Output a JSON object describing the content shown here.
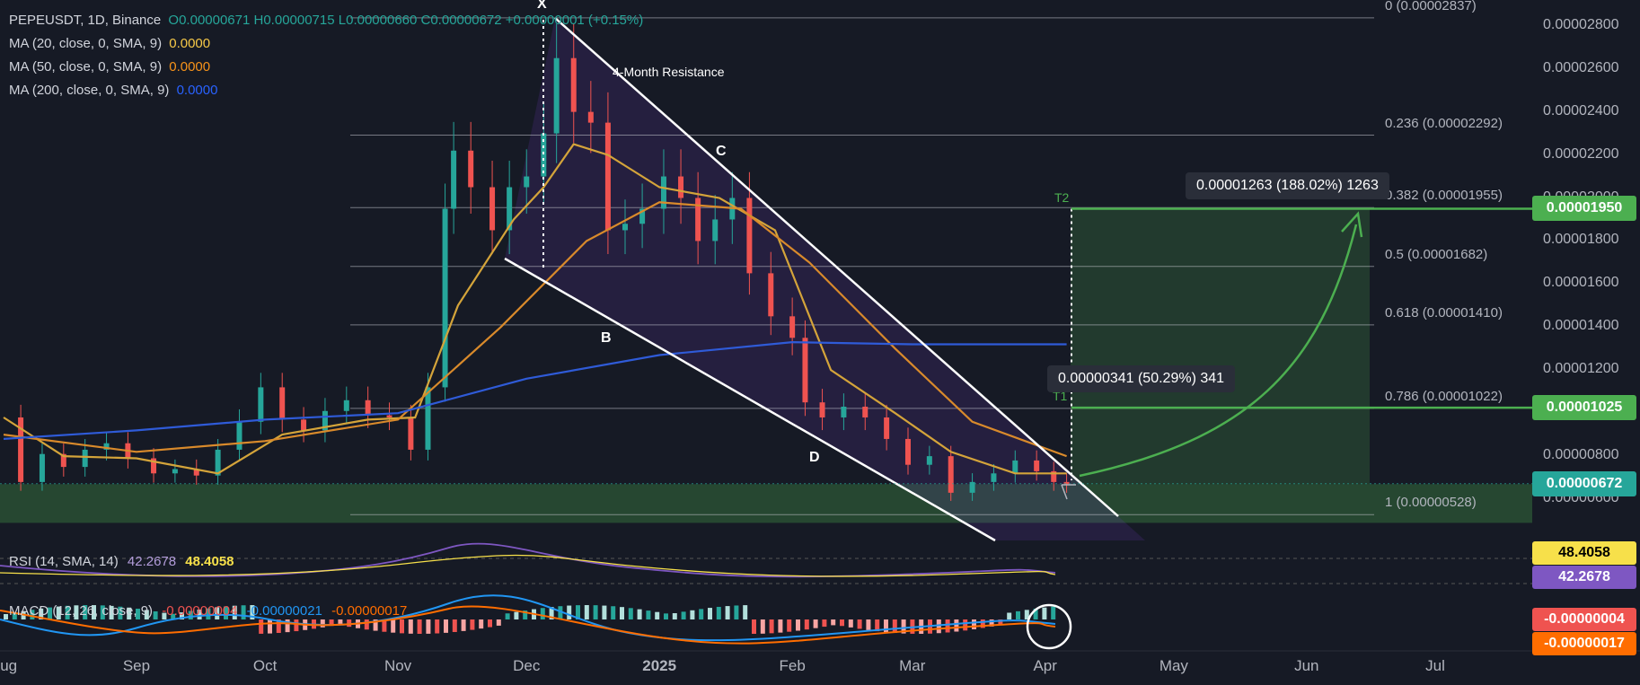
{
  "legend": {
    "symbol": "PEPEUSDT, 1D, Binance",
    "ohlc": "O0.00000671  H0.00000715  L0.00000660  C0.00000672  +0.00000001 (+0.15%)",
    "ma": [
      {
        "label": "MA (20, close, 0, SMA, 9)",
        "value": "0.0000",
        "color": "#f7c948"
      },
      {
        "label": "MA (50, close, 0, SMA, 9)",
        "value": "0.0000",
        "color": "#f7931a"
      },
      {
        "label": "MA (200, close, 0, SMA, 9)",
        "value": "0.0000",
        "color": "#2962ff"
      }
    ]
  },
  "annotations": {
    "resistance": "4-Month Resistance",
    "points": [
      "X",
      "B",
      "C",
      "D"
    ],
    "t1": "T1",
    "t2": "T2",
    "box_small": "0.00000341 (50.29%) 341",
    "box_large": "0.00001263 (188.02%) 1263"
  },
  "fib_levels": [
    {
      "label": "0 (0.00002837)",
      "value": 2.837e-05
    },
    {
      "label": "0.236 (0.00002292)",
      "value": 2.292e-05
    },
    {
      "label": "0.382 (0.00001955)",
      "value": 1.955e-05
    },
    {
      "label": "0.5 (0.00001682)",
      "value": 1.682e-05
    },
    {
      "label": "0.618 (0.00001410)",
      "value": 1.41e-05
    },
    {
      "label": "0.786 (0.00001022)",
      "value": 1.022e-05
    },
    {
      "label": "1 (0.00000528)",
      "value": 5.28e-06
    }
  ],
  "price_badges": [
    {
      "label": "0.00001950",
      "value": 1.95e-05,
      "color": "#4caf50"
    },
    {
      "label": "0.00001025",
      "value": 1.025e-05,
      "color": "#4caf50"
    },
    {
      "label": "0.00000672",
      "value": 6.72e-06,
      "color": "#26a69a"
    }
  ],
  "indicators": {
    "rsi_label": "RSI (14, SMA, 14)",
    "rsi_value": "42.2678",
    "rsi_ma_value": "48.4058",
    "macd_label": "MACD (12, 26, close, 9)",
    "macd_values": [
      "-0.00000004",
      "-0.00000021",
      "-0.00000017"
    ],
    "rsi_badges": [
      {
        "label": "48.4058",
        "color": "#f7e04a",
        "text": "#000000"
      },
      {
        "label": "42.2678",
        "color": "#7e57c2",
        "text": "#ffffff"
      }
    ],
    "macd_badges": [
      {
        "label": "-0.00000004",
        "color": "#ef5350",
        "text": "#ffffff"
      },
      {
        "label": "-0.00000017",
        "color": "#ff6d00",
        "text": "#ffffff"
      }
    ]
  },
  "chart_data": {
    "type": "candlestick",
    "title": "PEPEUSDT, 1D, Binance",
    "y_axis": {
      "ticks": [
        "0.00002800",
        "0.00002600",
        "0.00002400",
        "0.00002200",
        "0.00002000",
        "0.00001800",
        "0.00001600",
        "0.00001400",
        "0.00001200",
        "0.00001000",
        "0.00000800",
        "0.00000600"
      ],
      "values": [
        2.8e-05,
        2.6e-05,
        2.4e-05,
        2.2e-05,
        2e-05,
        1.8e-05,
        1.6e-05,
        1.4e-05,
        1.2e-05,
        1e-05,
        8e-06,
        6e-06
      ],
      "range": [
        4.5e-06,
        2.92e-05
      ]
    },
    "x_axis": {
      "ticks": [
        "Aug",
        "Sep",
        "Oct",
        "Nov",
        "Dec",
        "2025",
        "Feb",
        "Mar",
        "Apr",
        "May",
        "Jun",
        "Jul"
      ]
    },
    "series": [
      {
        "name": "price",
        "points": [
          [
            "2024-07-31",
            9.8e-06
          ],
          [
            "2024-08-05",
            6.8e-06
          ],
          [
            "2024-08-10",
            8.1e-06
          ],
          [
            "2024-08-15",
            7.5e-06
          ],
          [
            "2024-08-20",
            8.3e-06
          ],
          [
            "2024-08-25",
            8.6e-06
          ],
          [
            "2024-08-30",
            7.9e-06
          ],
          [
            "2024-09-05",
            7.2e-06
          ],
          [
            "2024-09-10",
            7.4e-06
          ],
          [
            "2024-09-15",
            7.1e-06
          ],
          [
            "2024-09-20",
            8.3e-06
          ],
          [
            "2024-09-25",
            9.6e-06
          ],
          [
            "2024-09-30",
            1.12e-05
          ],
          [
            "2024-10-05",
            9.7e-06
          ],
          [
            "2024-10-10",
            9.2e-06
          ],
          [
            "2024-10-15",
            1.01e-05
          ],
          [
            "2024-10-20",
            1.06e-05
          ],
          [
            "2024-10-25",
            9.9e-06
          ],
          [
            "2024-10-30",
            9.8e-06
          ],
          [
            "2024-11-04",
            8.3e-06
          ],
          [
            "2024-11-08",
            1.12e-05
          ],
          [
            "2024-11-12",
            1.95e-05
          ],
          [
            "2024-11-14",
            2.22e-05
          ],
          [
            "2024-11-18",
            2.05e-05
          ],
          [
            "2024-11-23",
            1.85e-05
          ],
          [
            "2024-11-27",
            2.05e-05
          ],
          [
            "2024-12-01",
            2.1e-05
          ],
          [
            "2024-12-05",
            2.3e-05
          ],
          [
            "2024-12-08",
            2.65e-05
          ],
          [
            "2024-12-12",
            2.4e-05
          ],
          [
            "2024-12-16",
            2.35e-05
          ],
          [
            "2024-12-20",
            1.85e-05
          ],
          [
            "2024-12-24",
            1.88e-05
          ],
          [
            "2024-12-28",
            1.95e-05
          ],
          [
            "2025-01-02",
            2.1e-05
          ],
          [
            "2025-01-06",
            2e-05
          ],
          [
            "2025-01-10",
            1.8e-05
          ],
          [
            "2025-01-14",
            1.9e-05
          ],
          [
            "2025-01-18",
            2e-05
          ],
          [
            "2025-01-22",
            1.65e-05
          ],
          [
            "2025-01-27",
            1.45e-05
          ],
          [
            "2025-02-01",
            1.35e-05
          ],
          [
            "2025-02-04",
            1.05e-05
          ],
          [
            "2025-02-08",
            9.8e-06
          ],
          [
            "2025-02-13",
            1.03e-05
          ],
          [
            "2025-02-18",
            9.8e-06
          ],
          [
            "2025-02-23",
            8.8e-06
          ],
          [
            "2025-02-28",
            7.6e-06
          ],
          [
            "2025-03-05",
            8e-06
          ],
          [
            "2025-03-10",
            6.3e-06
          ],
          [
            "2025-03-15",
            6.8e-06
          ],
          [
            "2025-03-20",
            7.2e-06
          ],
          [
            "2025-03-25",
            7.8e-06
          ],
          [
            "2025-03-30",
            7.3e-06
          ],
          [
            "2025-04-03",
            6.8e-06
          ],
          [
            "2025-04-06",
            6.7e-06
          ]
        ]
      },
      {
        "name": "MA (20, close, 0, SMA, 9)",
        "points": [
          [
            "2024-08-01",
            9.8e-06
          ],
          [
            "2024-08-15",
            8e-06
          ],
          [
            "2024-09-01",
            7.9e-06
          ],
          [
            "2024-09-20",
            7.2e-06
          ],
          [
            "2024-10-05",
            9e-06
          ],
          [
            "2024-10-25",
            9.7e-06
          ],
          [
            "2024-11-05",
            9.8e-06
          ],
          [
            "2024-11-15",
            1.5e-05
          ],
          [
            "2024-11-28",
            1.9e-05
          ],
          [
            "2024-12-05",
            2.05e-05
          ],
          [
            "2024-12-12",
            2.25e-05
          ],
          [
            "2024-12-20",
            2.2e-05
          ],
          [
            "2025-01-01",
            2.05e-05
          ],
          [
            "2025-01-15",
            2e-05
          ],
          [
            "2025-01-28",
            1.85e-05
          ],
          [
            "2025-02-10",
            1.2e-05
          ],
          [
            "2025-02-25",
            1e-05
          ],
          [
            "2025-03-10",
            8.2e-06
          ],
          [
            "2025-03-25",
            7.2e-06
          ],
          [
            "2025-04-06",
            7.2e-06
          ]
        ]
      },
      {
        "name": "MA (50, close, 0, SMA, 9)",
        "points": [
          [
            "2024-08-01",
            9e-06
          ],
          [
            "2024-09-01",
            8.2e-06
          ],
          [
            "2024-10-01",
            8.7e-06
          ],
          [
            "2024-11-01",
            9.7e-06
          ],
          [
            "2024-11-25",
            1.4e-05
          ],
          [
            "2024-12-15",
            1.8e-05
          ],
          [
            "2025-01-01",
            1.98e-05
          ],
          [
            "2025-01-20",
            1.95e-05
          ],
          [
            "2025-02-05",
            1.7e-05
          ],
          [
            "2025-02-25",
            1.3e-05
          ],
          [
            "2025-03-15",
            9.6e-06
          ],
          [
            "2025-04-06",
            8e-06
          ]
        ]
      },
      {
        "name": "MA (200, close, 0, SMA, 9)",
        "points": [
          [
            "2024-08-01",
            8.8e-06
          ],
          [
            "2024-09-01",
            9.2e-06
          ],
          [
            "2024-10-01",
            9.7e-06
          ],
          [
            "2024-11-01",
            1e-05
          ],
          [
            "2024-12-01",
            1.16e-05
          ],
          [
            "2025-01-01",
            1.27e-05
          ],
          [
            "2025-02-01",
            1.33e-05
          ],
          [
            "2025-03-01",
            1.32e-05
          ],
          [
            "2025-04-06",
            1.32e-05
          ]
        ]
      }
    ],
    "legend": "top-left",
    "grid": false
  }
}
